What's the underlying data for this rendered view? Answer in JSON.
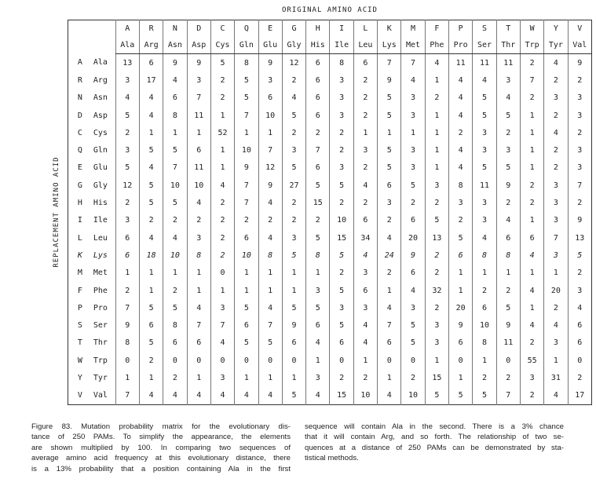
{
  "table": {
    "title": "ORIGINAL AMINO ACID",
    "row_axis_label": "REPLACEMENT AMINO ACID",
    "columns": [
      {
        "code": "A",
        "name": "Ala"
      },
      {
        "code": "R",
        "name": "Arg"
      },
      {
        "code": "N",
        "name": "Asn"
      },
      {
        "code": "D",
        "name": "Asp"
      },
      {
        "code": "C",
        "name": "Cys"
      },
      {
        "code": "Q",
        "name": "Gln"
      },
      {
        "code": "E",
        "name": "Glu"
      },
      {
        "code": "G",
        "name": "Gly"
      },
      {
        "code": "H",
        "name": "His"
      },
      {
        "code": "I",
        "name": "Ile"
      },
      {
        "code": "L",
        "name": "Leu"
      },
      {
        "code": "K",
        "name": "Lys"
      },
      {
        "code": "M",
        "name": "Met"
      },
      {
        "code": "F",
        "name": "Phe"
      },
      {
        "code": "P",
        "name": "Pro"
      },
      {
        "code": "S",
        "name": "Ser"
      },
      {
        "code": "T",
        "name": "Thr"
      },
      {
        "code": "W",
        "name": "Trp"
      },
      {
        "code": "Y",
        "name": "Tyr"
      },
      {
        "code": "V",
        "name": "Val"
      }
    ],
    "rows": [
      {
        "code": "A",
        "name": "Ala",
        "values": [
          13,
          6,
          9,
          9,
          5,
          8,
          9,
          12,
          6,
          8,
          6,
          7,
          7,
          4,
          11,
          11,
          11,
          2,
          4,
          9
        ]
      },
      {
        "code": "R",
        "name": "Arg",
        "values": [
          3,
          17,
          4,
          3,
          2,
          5,
          3,
          2,
          6,
          3,
          2,
          9,
          4,
          1,
          4,
          4,
          3,
          7,
          2,
          2
        ]
      },
      {
        "code": "N",
        "name": "Asn",
        "values": [
          4,
          4,
          6,
          7,
          2,
          5,
          6,
          4,
          6,
          3,
          2,
          5,
          3,
          2,
          4,
          5,
          4,
          2,
          3,
          3
        ]
      },
      {
        "code": "D",
        "name": "Asp",
        "values": [
          5,
          4,
          8,
          11,
          1,
          7,
          10,
          5,
          6,
          3,
          2,
          5,
          3,
          1,
          4,
          5,
          5,
          1,
          2,
          3
        ]
      },
      {
        "code": "C",
        "name": "Cys",
        "values": [
          2,
          1,
          1,
          1,
          52,
          1,
          1,
          2,
          2,
          2,
          1,
          1,
          1,
          1,
          2,
          3,
          2,
          1,
          4,
          2
        ]
      },
      {
        "code": "Q",
        "name": "Gln",
        "values": [
          3,
          5,
          5,
          6,
          1,
          10,
          7,
          3,
          7,
          2,
          3,
          5,
          3,
          1,
          4,
          3,
          3,
          1,
          2,
          3
        ]
      },
      {
        "code": "E",
        "name": "Glu",
        "values": [
          5,
          4,
          7,
          11,
          1,
          9,
          12,
          5,
          6,
          3,
          2,
          5,
          3,
          1,
          4,
          5,
          5,
          1,
          2,
          3
        ]
      },
      {
        "code": "G",
        "name": "Gly",
        "values": [
          12,
          5,
          10,
          10,
          4,
          7,
          9,
          27,
          5,
          5,
          4,
          6,
          5,
          3,
          8,
          11,
          9,
          2,
          3,
          7
        ]
      },
      {
        "code": "H",
        "name": "His",
        "values": [
          2,
          5,
          5,
          4,
          2,
          7,
          4,
          2,
          15,
          2,
          2,
          3,
          2,
          2,
          3,
          3,
          2,
          2,
          3,
          2
        ]
      },
      {
        "code": "I",
        "name": "Ile",
        "values": [
          3,
          2,
          2,
          2,
          2,
          2,
          2,
          2,
          2,
          10,
          6,
          2,
          6,
          5,
          2,
          3,
          4,
          1,
          3,
          9
        ]
      },
      {
        "code": "L",
        "name": "Leu",
        "values": [
          6,
          4,
          4,
          3,
          2,
          6,
          4,
          3,
          5,
          15,
          34,
          4,
          20,
          13,
          5,
          4,
          6,
          6,
          7,
          13
        ]
      },
      {
        "code": "K",
        "name": "Lys",
        "values": [
          6,
          18,
          10,
          8,
          2,
          10,
          8,
          5,
          8,
          5,
          4,
          24,
          9,
          2,
          6,
          8,
          8,
          4,
          3,
          5
        ]
      },
      {
        "code": "M",
        "name": "Met",
        "values": [
          1,
          1,
          1,
          1,
          0,
          1,
          1,
          1,
          1,
          2,
          3,
          2,
          6,
          2,
          1,
          1,
          1,
          1,
          1,
          2
        ]
      },
      {
        "code": "F",
        "name": "Phe",
        "values": [
          2,
          1,
          2,
          1,
          1,
          1,
          1,
          1,
          3,
          5,
          6,
          1,
          4,
          32,
          1,
          2,
          2,
          4,
          20,
          3
        ]
      },
      {
        "code": "P",
        "name": "Pro",
        "values": [
          7,
          5,
          5,
          4,
          3,
          5,
          4,
          5,
          5,
          3,
          3,
          4,
          3,
          2,
          20,
          6,
          5,
          1,
          2,
          4
        ]
      },
      {
        "code": "S",
        "name": "Ser",
        "values": [
          9,
          6,
          8,
          7,
          7,
          6,
          7,
          9,
          6,
          5,
          4,
          7,
          5,
          3,
          9,
          10,
          9,
          4,
          4,
          6
        ]
      },
      {
        "code": "T",
        "name": "Thr",
        "values": [
          8,
          5,
          6,
          6,
          4,
          5,
          5,
          6,
          4,
          6,
          4,
          6,
          5,
          3,
          6,
          8,
          11,
          2,
          3,
          6
        ]
      },
      {
        "code": "W",
        "name": "Trp",
        "values": [
          0,
          2,
          0,
          0,
          0,
          0,
          0,
          0,
          1,
          0,
          1,
          0,
          0,
          1,
          0,
          1,
          0,
          55,
          1,
          0
        ]
      },
      {
        "code": "Y",
        "name": "Tyr",
        "values": [
          1,
          1,
          2,
          1,
          3,
          1,
          1,
          1,
          3,
          2,
          2,
          1,
          2,
          15,
          1,
          2,
          2,
          3,
          31,
          2
        ]
      },
      {
        "code": "V",
        "name": "Val",
        "values": [
          7,
          4,
          4,
          4,
          4,
          4,
          4,
          5,
          4,
          15,
          10,
          4,
          10,
          5,
          5,
          5,
          7,
          2,
          4,
          17
        ]
      }
    ]
  },
  "caption": {
    "column_1": [
      "Figure 83. Mutation probability matrix for the evolutionary dis-",
      "tance of 250 PAMs. To simplify the appearance, the elements",
      "are shown multiplied by 100. In comparing two sequences of",
      "average amino acid frequency at this evolutionary distance, there",
      "is a 13% probability that a position containing Ala in the first"
    ],
    "column_2": [
      "sequence will contain Ala in the second. There is a 3% chance",
      "that it will contain Arg, and so forth. The relationship of two se-",
      "quences at a distance of 250 PAMs can be demonstrated by sta-",
      "tistical methods."
    ]
  }
}
